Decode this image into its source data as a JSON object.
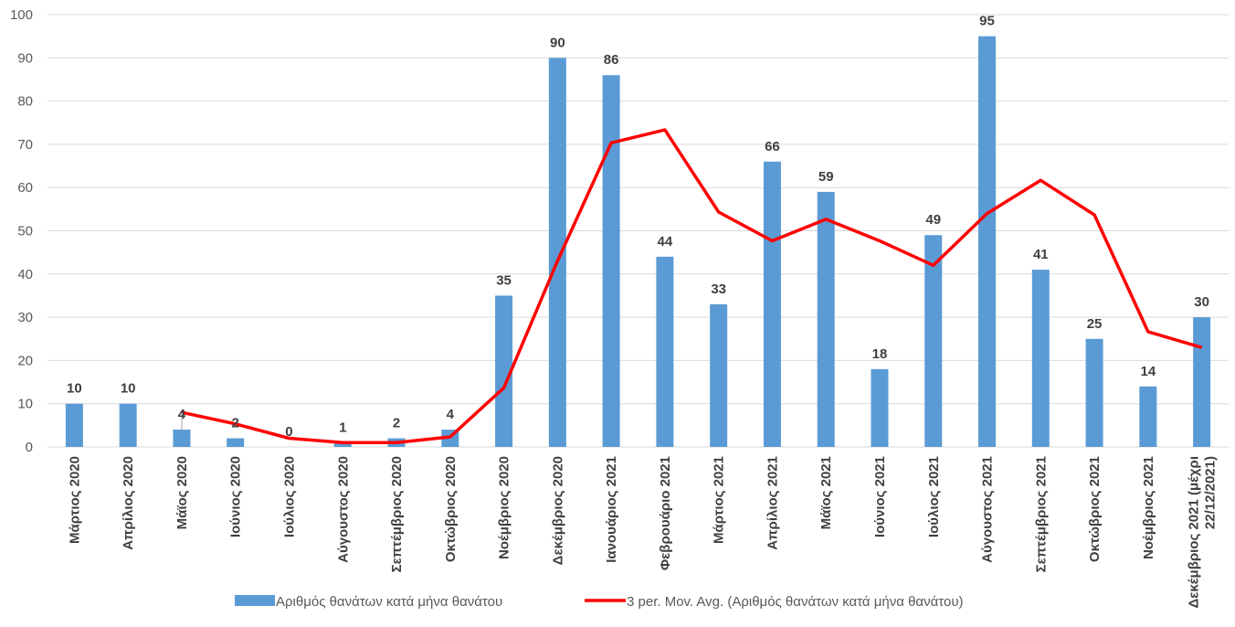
{
  "chart_data": {
    "type": "bar",
    "categories": [
      "Μάρτιος 2020",
      "Απρίλιος 2020",
      "Μάϊος 2020",
      "Ιούνιος 2020",
      "Ιούλιος 2020",
      "Αύγουστος 2020",
      "Σεπτέμβριος 2020",
      "Οκτώβριος 2020",
      "Νοέμβριος 2020",
      "Δεκέμβριος 2020",
      "Ιανουάριος 2021",
      "Φεβρουάριο 2021",
      "Μάρτιος 2021",
      "Απρίλιος 2021",
      "Μάϊος 2021",
      "Ιούνιος 2021",
      "Ιούλιος 2021",
      "Αύγουστος 2021",
      "Σεπτέμβριος 2021",
      "Οκτώβριος 2021",
      "Νοέμβριος 2021",
      "Δεκέμβριος 2021 (μέχρι 22/12/2021)"
    ],
    "series": [
      {
        "name": "Αριθμός θανάτων κατά μήνα θανάτου",
        "type": "bar",
        "color": "#5b9bd5",
        "values": [
          10,
          10,
          4,
          2,
          0,
          1,
          2,
          4,
          35,
          90,
          86,
          44,
          33,
          66,
          59,
          18,
          49,
          95,
          41,
          25,
          14,
          30
        ]
      },
      {
        "name": "3 per. Mov. Avg. (Αριθμός θανάτων κατά μήνα θανάτου)",
        "type": "line",
        "color": "#ff0000",
        "values": [
          null,
          null,
          8,
          5.33,
          2,
          1,
          1,
          2.33,
          13.67,
          43,
          70.33,
          73.33,
          54.33,
          47.67,
          52.67,
          47.67,
          42,
          54,
          61.67,
          53.67,
          26.67,
          23
        ]
      }
    ],
    "y_ticks": [
      "0",
      "10",
      "20",
      "30",
      "40",
      "50",
      "60",
      "70",
      "80",
      "90",
      "100"
    ],
    "ylim": [
      0,
      100
    ],
    "grid": true,
    "legend_position": "bottom"
  }
}
